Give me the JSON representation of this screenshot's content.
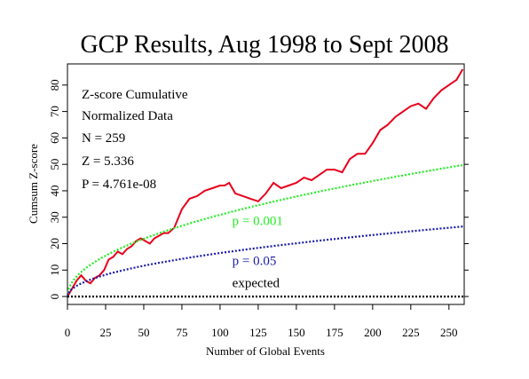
{
  "chart_data": {
    "type": "line",
    "title": "GCP Results, Aug 1998 to Sept 2008",
    "xlabel": "Number of Global Events",
    "ylabel": "Cumsum Z-score",
    "xlim": [
      0,
      260
    ],
    "ylim": [
      -3,
      88
    ],
    "xticks": [
      0,
      25,
      50,
      75,
      100,
      125,
      150,
      175,
      200,
      225,
      250
    ],
    "yticks": [
      0,
      10,
      20,
      30,
      40,
      50,
      60,
      70,
      80
    ],
    "grid": false,
    "stats": [
      "Z-score Cumulative",
      "Normalized Data",
      "N = 259",
      "Z = 5.336",
      "P = 4.761e-08"
    ],
    "series": [
      {
        "name": "",
        "color": "#e8001c",
        "style": "solid",
        "x": [
          0,
          3,
          6,
          9,
          12,
          15,
          18,
          21,
          24,
          27,
          30,
          33,
          36,
          39,
          42,
          45,
          48,
          51,
          54,
          57,
          60,
          63,
          66,
          70,
          75,
          80,
          85,
          90,
          95,
          100,
          103,
          106,
          110,
          115,
          120,
          125,
          130,
          135,
          140,
          145,
          150,
          155,
          160,
          165,
          170,
          175,
          180,
          185,
          190,
          195,
          200,
          205,
          210,
          215,
          220,
          225,
          230,
          235,
          240,
          245,
          250,
          255,
          259
        ],
        "y": [
          0,
          3,
          6,
          8,
          6,
          5,
          7,
          8,
          10,
          14,
          15,
          17,
          16,
          18,
          19,
          21,
          22,
          21,
          20,
          22,
          23,
          24,
          24,
          26,
          33,
          37,
          38,
          40,
          41,
          42,
          42,
          43,
          39,
          38,
          37,
          36,
          39,
          43,
          41,
          42,
          43,
          45,
          44,
          46,
          48,
          48,
          47,
          52,
          54,
          54,
          58,
          63,
          65,
          68,
          70,
          72,
          73,
          71,
          75,
          78,
          80,
          82,
          86
        ]
      },
      {
        "name": "p = 0.001",
        "color": "#22ee22",
        "style": "dotted",
        "function": "3.09*sqrt(x)",
        "label_at": [
          108,
          27
        ]
      },
      {
        "name": "p = 0.05",
        "color": "#1a1aa8",
        "style": "dotted",
        "function": "1.645*sqrt(x)",
        "label_at": [
          108,
          12
        ]
      },
      {
        "name": "expected",
        "color": "#000000",
        "style": "dotted",
        "function": "0",
        "label_at": [
          108,
          3.5
        ]
      }
    ]
  }
}
